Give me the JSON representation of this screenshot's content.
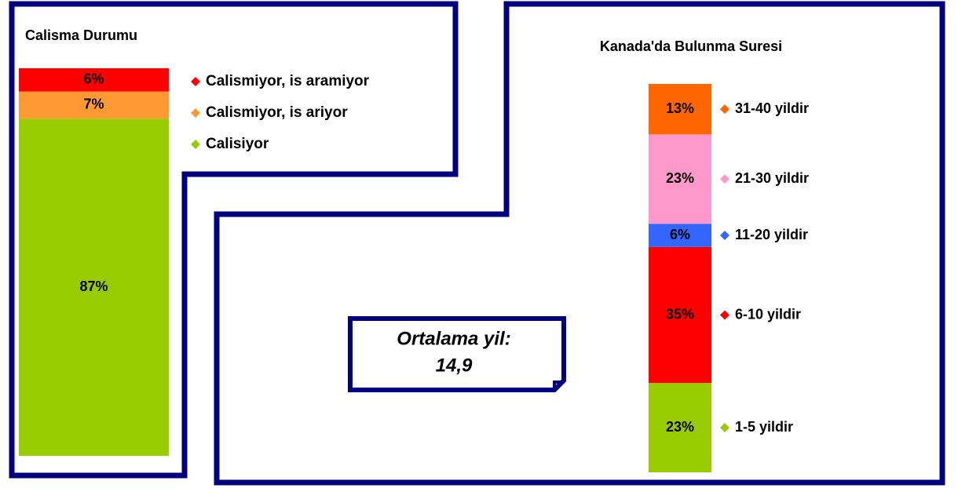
{
  "chart_data": [
    {
      "type": "bar",
      "stacked": true,
      "title": "Calisma Durumu",
      "categories": [
        null
      ],
      "series": [
        {
          "name": "Calismiyor, is aramiyor",
          "color": "#ff0000",
          "values": [
            6
          ],
          "value_labels": [
            "6%"
          ]
        },
        {
          "name": "Calismiyor, is ariyor",
          "color": "#ff9933",
          "values": [
            7
          ],
          "value_labels": [
            "7%"
          ]
        },
        {
          "name": "Calisiyor",
          "color": "#99cc00",
          "values": [
            87
          ],
          "value_labels": [
            "87%"
          ]
        }
      ]
    },
    {
      "type": "bar",
      "stacked": true,
      "title": "Kanada'da Bulunma Suresi",
      "categories": [
        null
      ],
      "series": [
        {
          "name": "31-40 yildir",
          "color": "#ff6600",
          "values": [
            13
          ],
          "value_labels": [
            "13%"
          ]
        },
        {
          "name": "21-30 yildir",
          "color": "#ff99cc",
          "values": [
            23
          ],
          "value_labels": [
            "23%"
          ]
        },
        {
          "name": "11-20 yildir",
          "color": "#3366ff",
          "values": [
            6
          ],
          "value_labels": [
            "6%"
          ]
        },
        {
          "name": "6-10 yildir",
          "color": "#ff0000",
          "values": [
            35
          ],
          "value_labels": [
            "35%"
          ]
        },
        {
          "name": "1-5 yildir",
          "color": "#99cc00",
          "values": [
            23
          ],
          "value_labels": [
            "23%"
          ]
        }
      ],
      "annotation": {
        "label": "Ortalama yil:",
        "value": "14,9"
      }
    }
  ]
}
